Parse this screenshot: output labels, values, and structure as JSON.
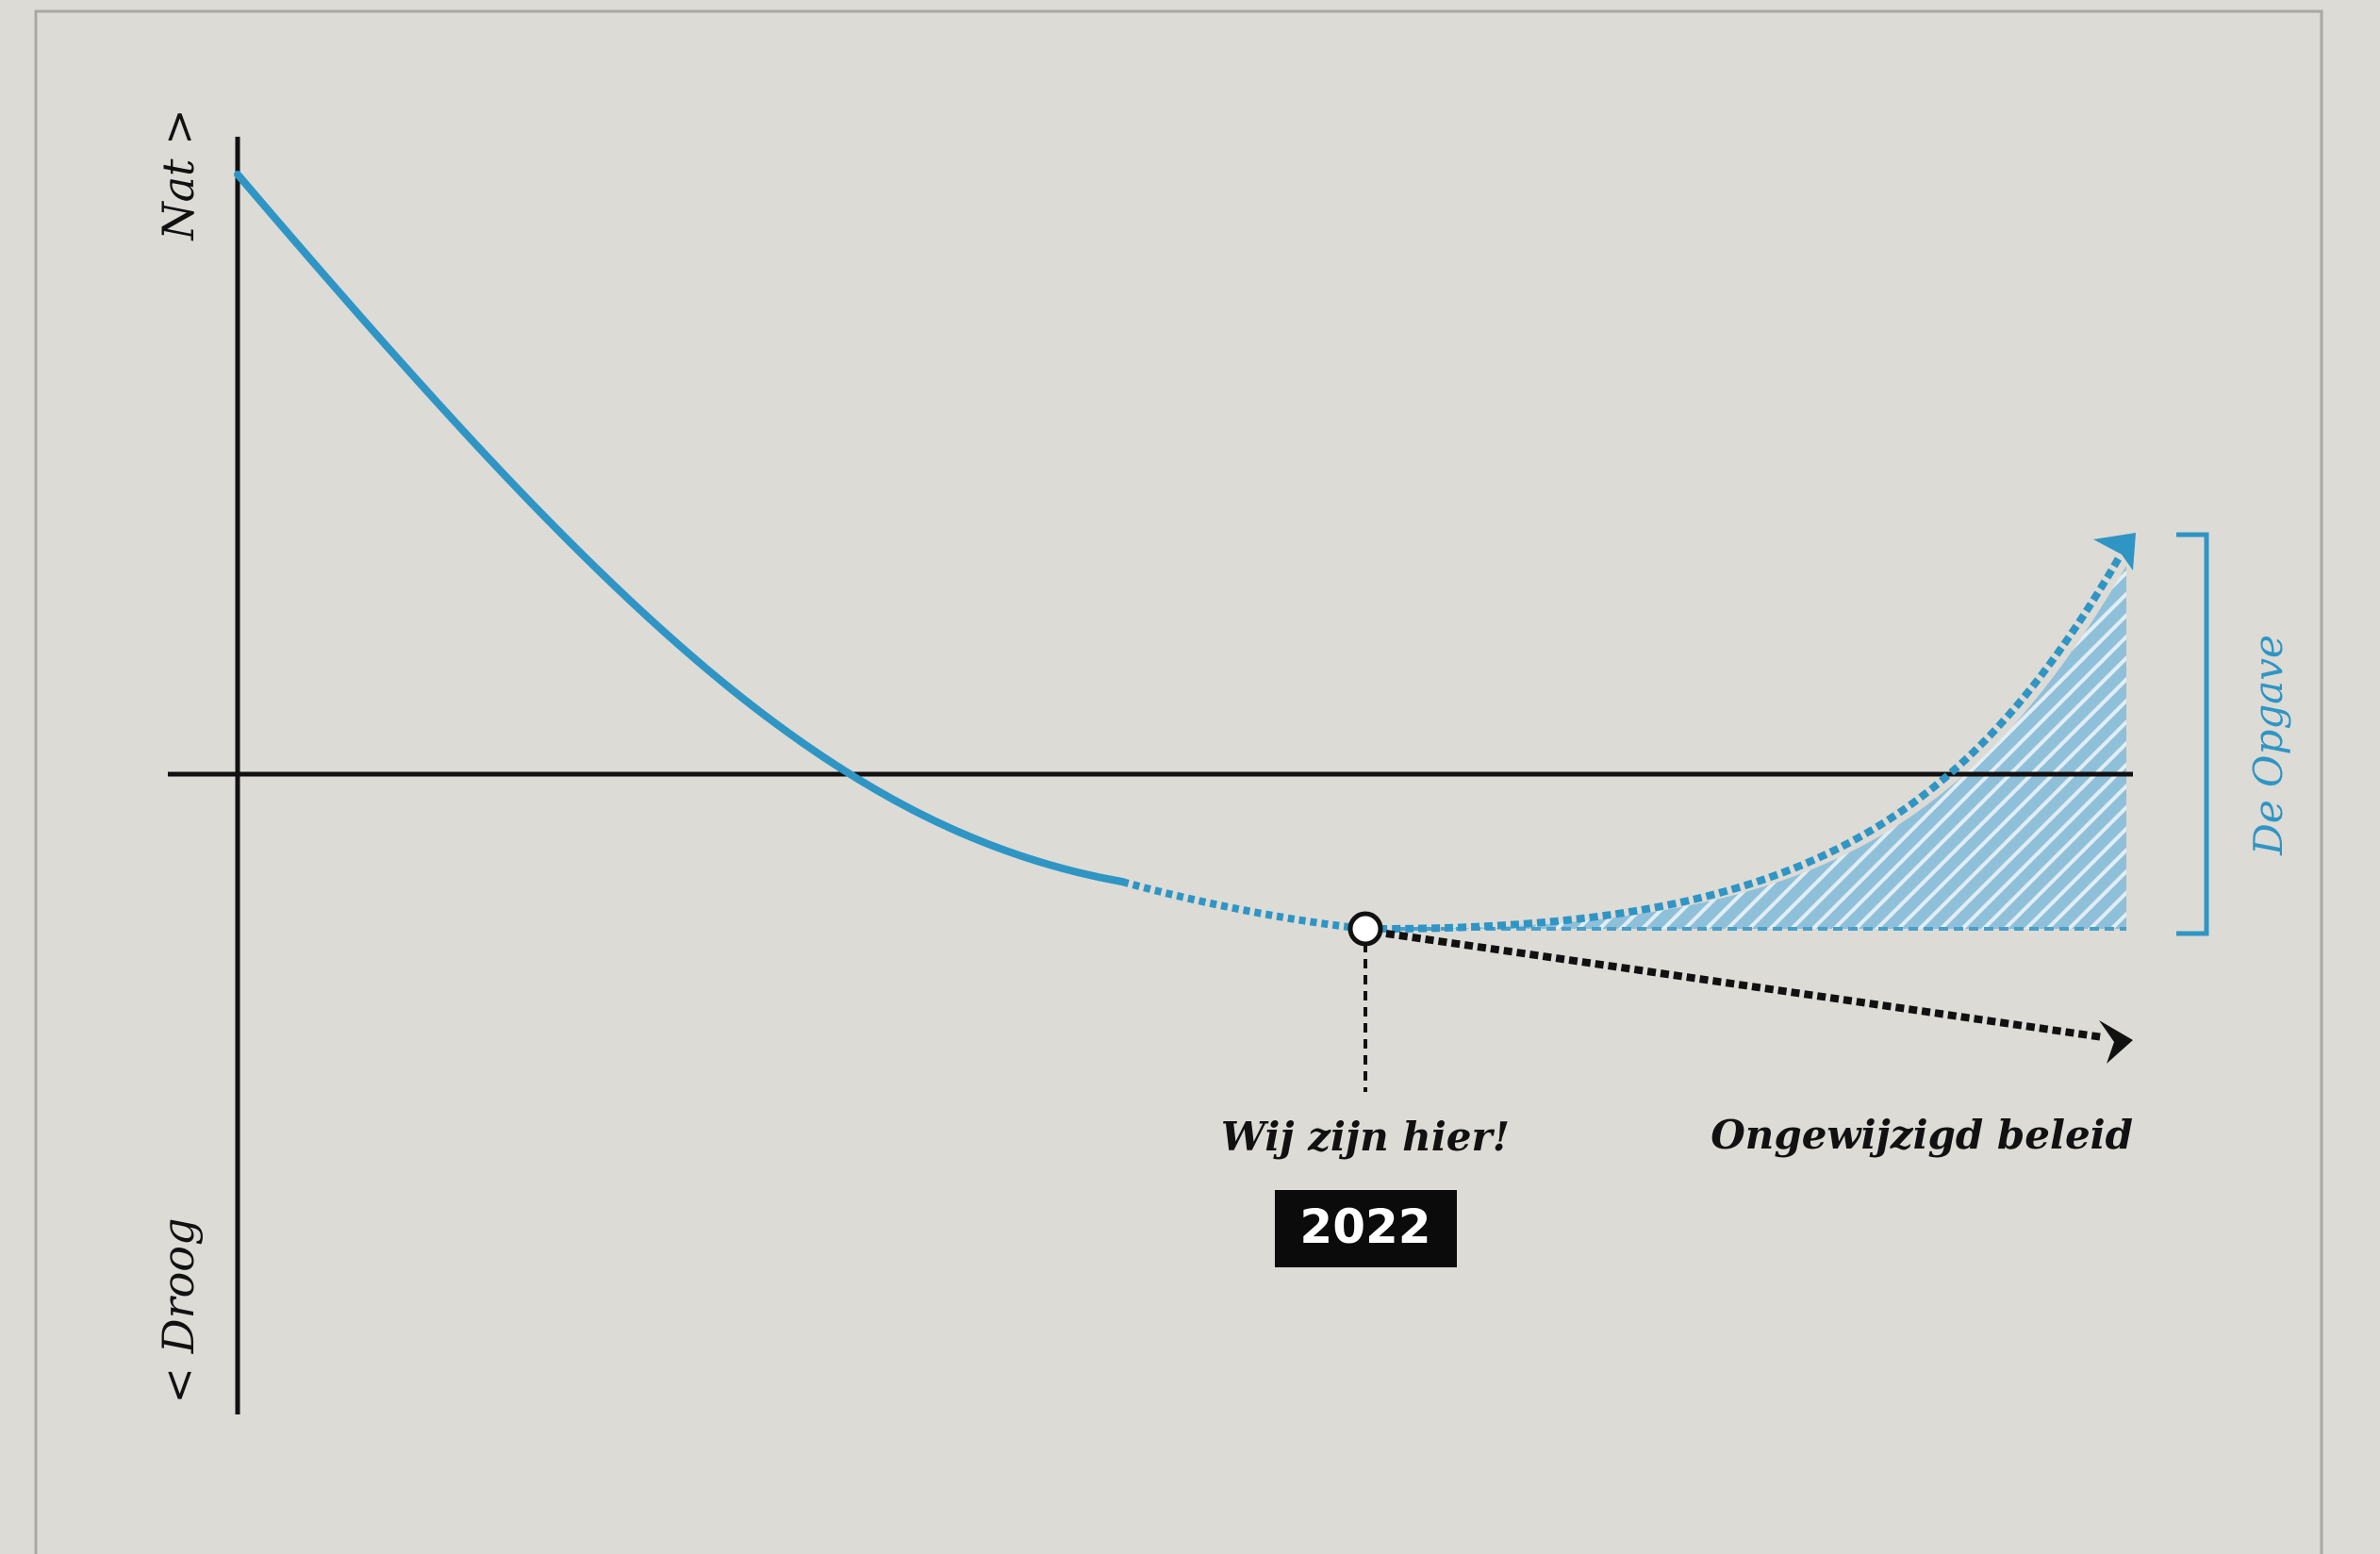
{
  "diagram": {
    "y_axis_top_label": "Nat >",
    "y_axis_bottom_label": "< Droog",
    "current_marker_label": "Wij zijn hier!",
    "current_year": "2022",
    "baseline_trend_label": "Ongewijzigd beleid",
    "target_trend_label": "De Opgave"
  },
  "colors": {
    "background": "#dcdbd6",
    "border": "#a9a8a3",
    "axis": "#111111",
    "curve_blue": "#2f95c4",
    "hatch_blue": "#8fc0da",
    "year_box": "#0b0b0b",
    "year_text": "#ffffff"
  }
}
